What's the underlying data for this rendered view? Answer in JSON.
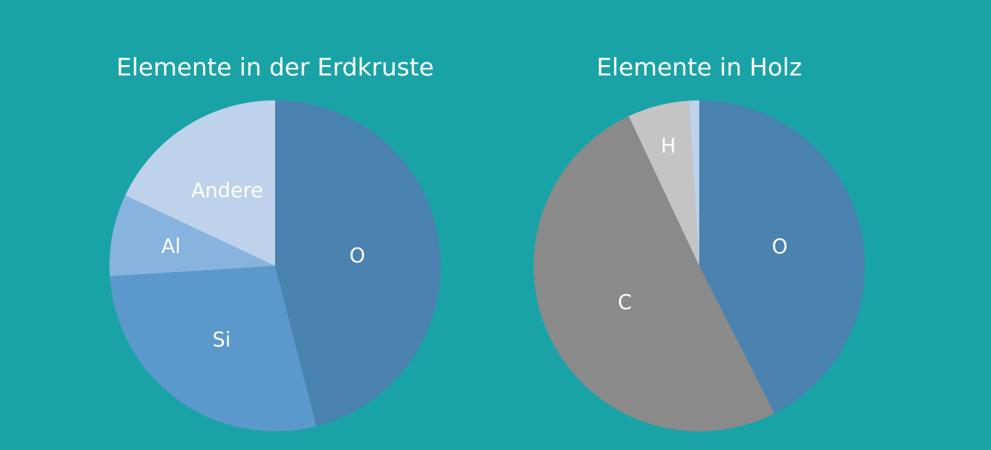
{
  "background": "#1aa3a6",
  "chart_data": [
    {
      "type": "pie",
      "title": "Elemente in der Erdkruste",
      "slices": [
        {
          "label": "O",
          "value": 46,
          "color": "#4a82b0"
        },
        {
          "label": "Si",
          "value": 28,
          "color": "#5b99cc"
        },
        {
          "label": "Al",
          "value": 8,
          "color": "#88b3df"
        },
        {
          "label": "Andere",
          "value": 18,
          "color": "#bed2eb"
        }
      ]
    },
    {
      "type": "pie",
      "title": "Elemente in Holz",
      "slices": [
        {
          "label": "O",
          "value": 42.5,
          "color": "#4a82b0"
        },
        {
          "label": "C",
          "value": 50.5,
          "color": "#8a8a8a"
        },
        {
          "label": "H",
          "value": 6,
          "color": "#c4c4c4"
        },
        {
          "label": "",
          "value": 1,
          "color": "#bed2eb"
        }
      ]
    }
  ]
}
